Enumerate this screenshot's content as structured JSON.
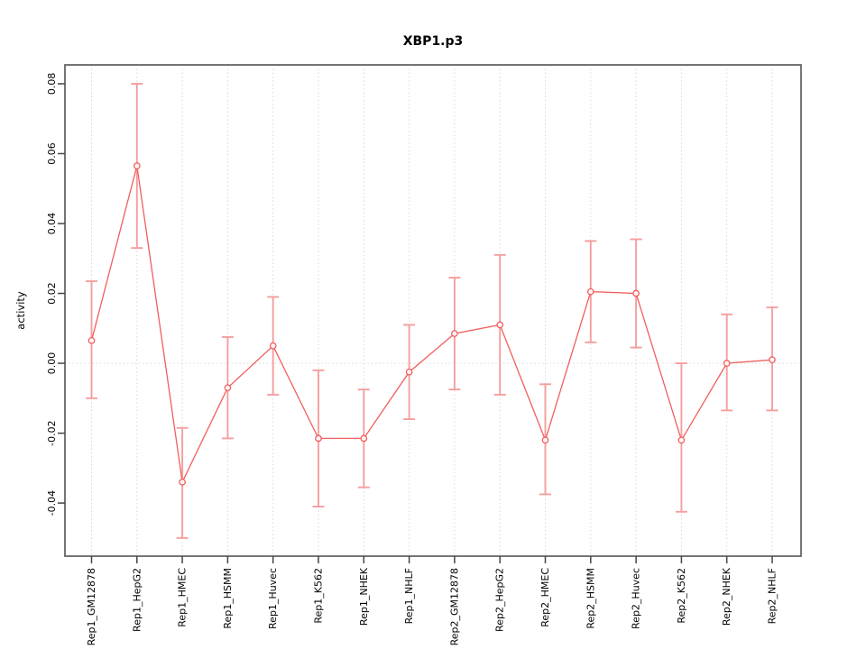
{
  "chart_data": {
    "type": "line",
    "title": "XBP1.p3",
    "ylabel": "activity",
    "xlabel": "",
    "legend_position": "none",
    "grid": {
      "vertical_per_category": true,
      "horizontal_zero_line": true,
      "style": "dotted"
    },
    "ylim": [
      -0.0552,
      0.0854
    ],
    "yticks": [
      0.08,
      0.06,
      0.04,
      0.02,
      0.0,
      -0.02,
      -0.04
    ],
    "ytick_labels": [
      "0.08",
      "0.06",
      "0.04",
      "0.02",
      "0.00",
      "-0.02",
      "-0.04"
    ],
    "categories": [
      "Rep1_GM12878",
      "Rep1_HepG2",
      "Rep1_HMEC",
      "Rep1_HSMM",
      "Rep1_Huvec",
      "Rep1_K562",
      "Rep1_NHEK",
      "Rep1_NHLF",
      "Rep2_GM12878",
      "Rep2_HepG2",
      "Rep2_HMEC",
      "Rep2_HSMM",
      "Rep2_Huvec",
      "Rep2_K562",
      "Rep2_NHEK",
      "Rep2_NHLF"
    ],
    "series": [
      {
        "name": "activity",
        "values": [
          0.0065,
          0.0565,
          -0.034,
          -0.007,
          0.005,
          -0.0215,
          -0.0215,
          -0.0025,
          0.0085,
          0.011,
          -0.022,
          0.0205,
          0.02,
          -0.022,
          0.0,
          0.001
        ],
        "upper": [
          0.0235,
          0.08,
          -0.0185,
          0.0075,
          0.019,
          -0.002,
          -0.0075,
          0.011,
          0.0245,
          0.031,
          -0.006,
          0.035,
          0.0355,
          0.0,
          0.014,
          0.016
        ],
        "lower": [
          -0.01,
          0.033,
          -0.05,
          -0.0215,
          -0.009,
          -0.041,
          -0.0355,
          -0.016,
          -0.0075,
          -0.009,
          -0.0375,
          0.006,
          0.0045,
          -0.0425,
          -0.0135,
          -0.0135
        ]
      }
    ],
    "colors": {
      "series_line": "#f15e5e",
      "point_stroke": "#f15e5e",
      "point_fill": "#ffffff",
      "error_bar": "#f59e9e",
      "gridline": "#d8d8d8",
      "axis_box": "#666666",
      "tick": "#444444",
      "text": "#000000",
      "background": "#ffffff"
    }
  }
}
